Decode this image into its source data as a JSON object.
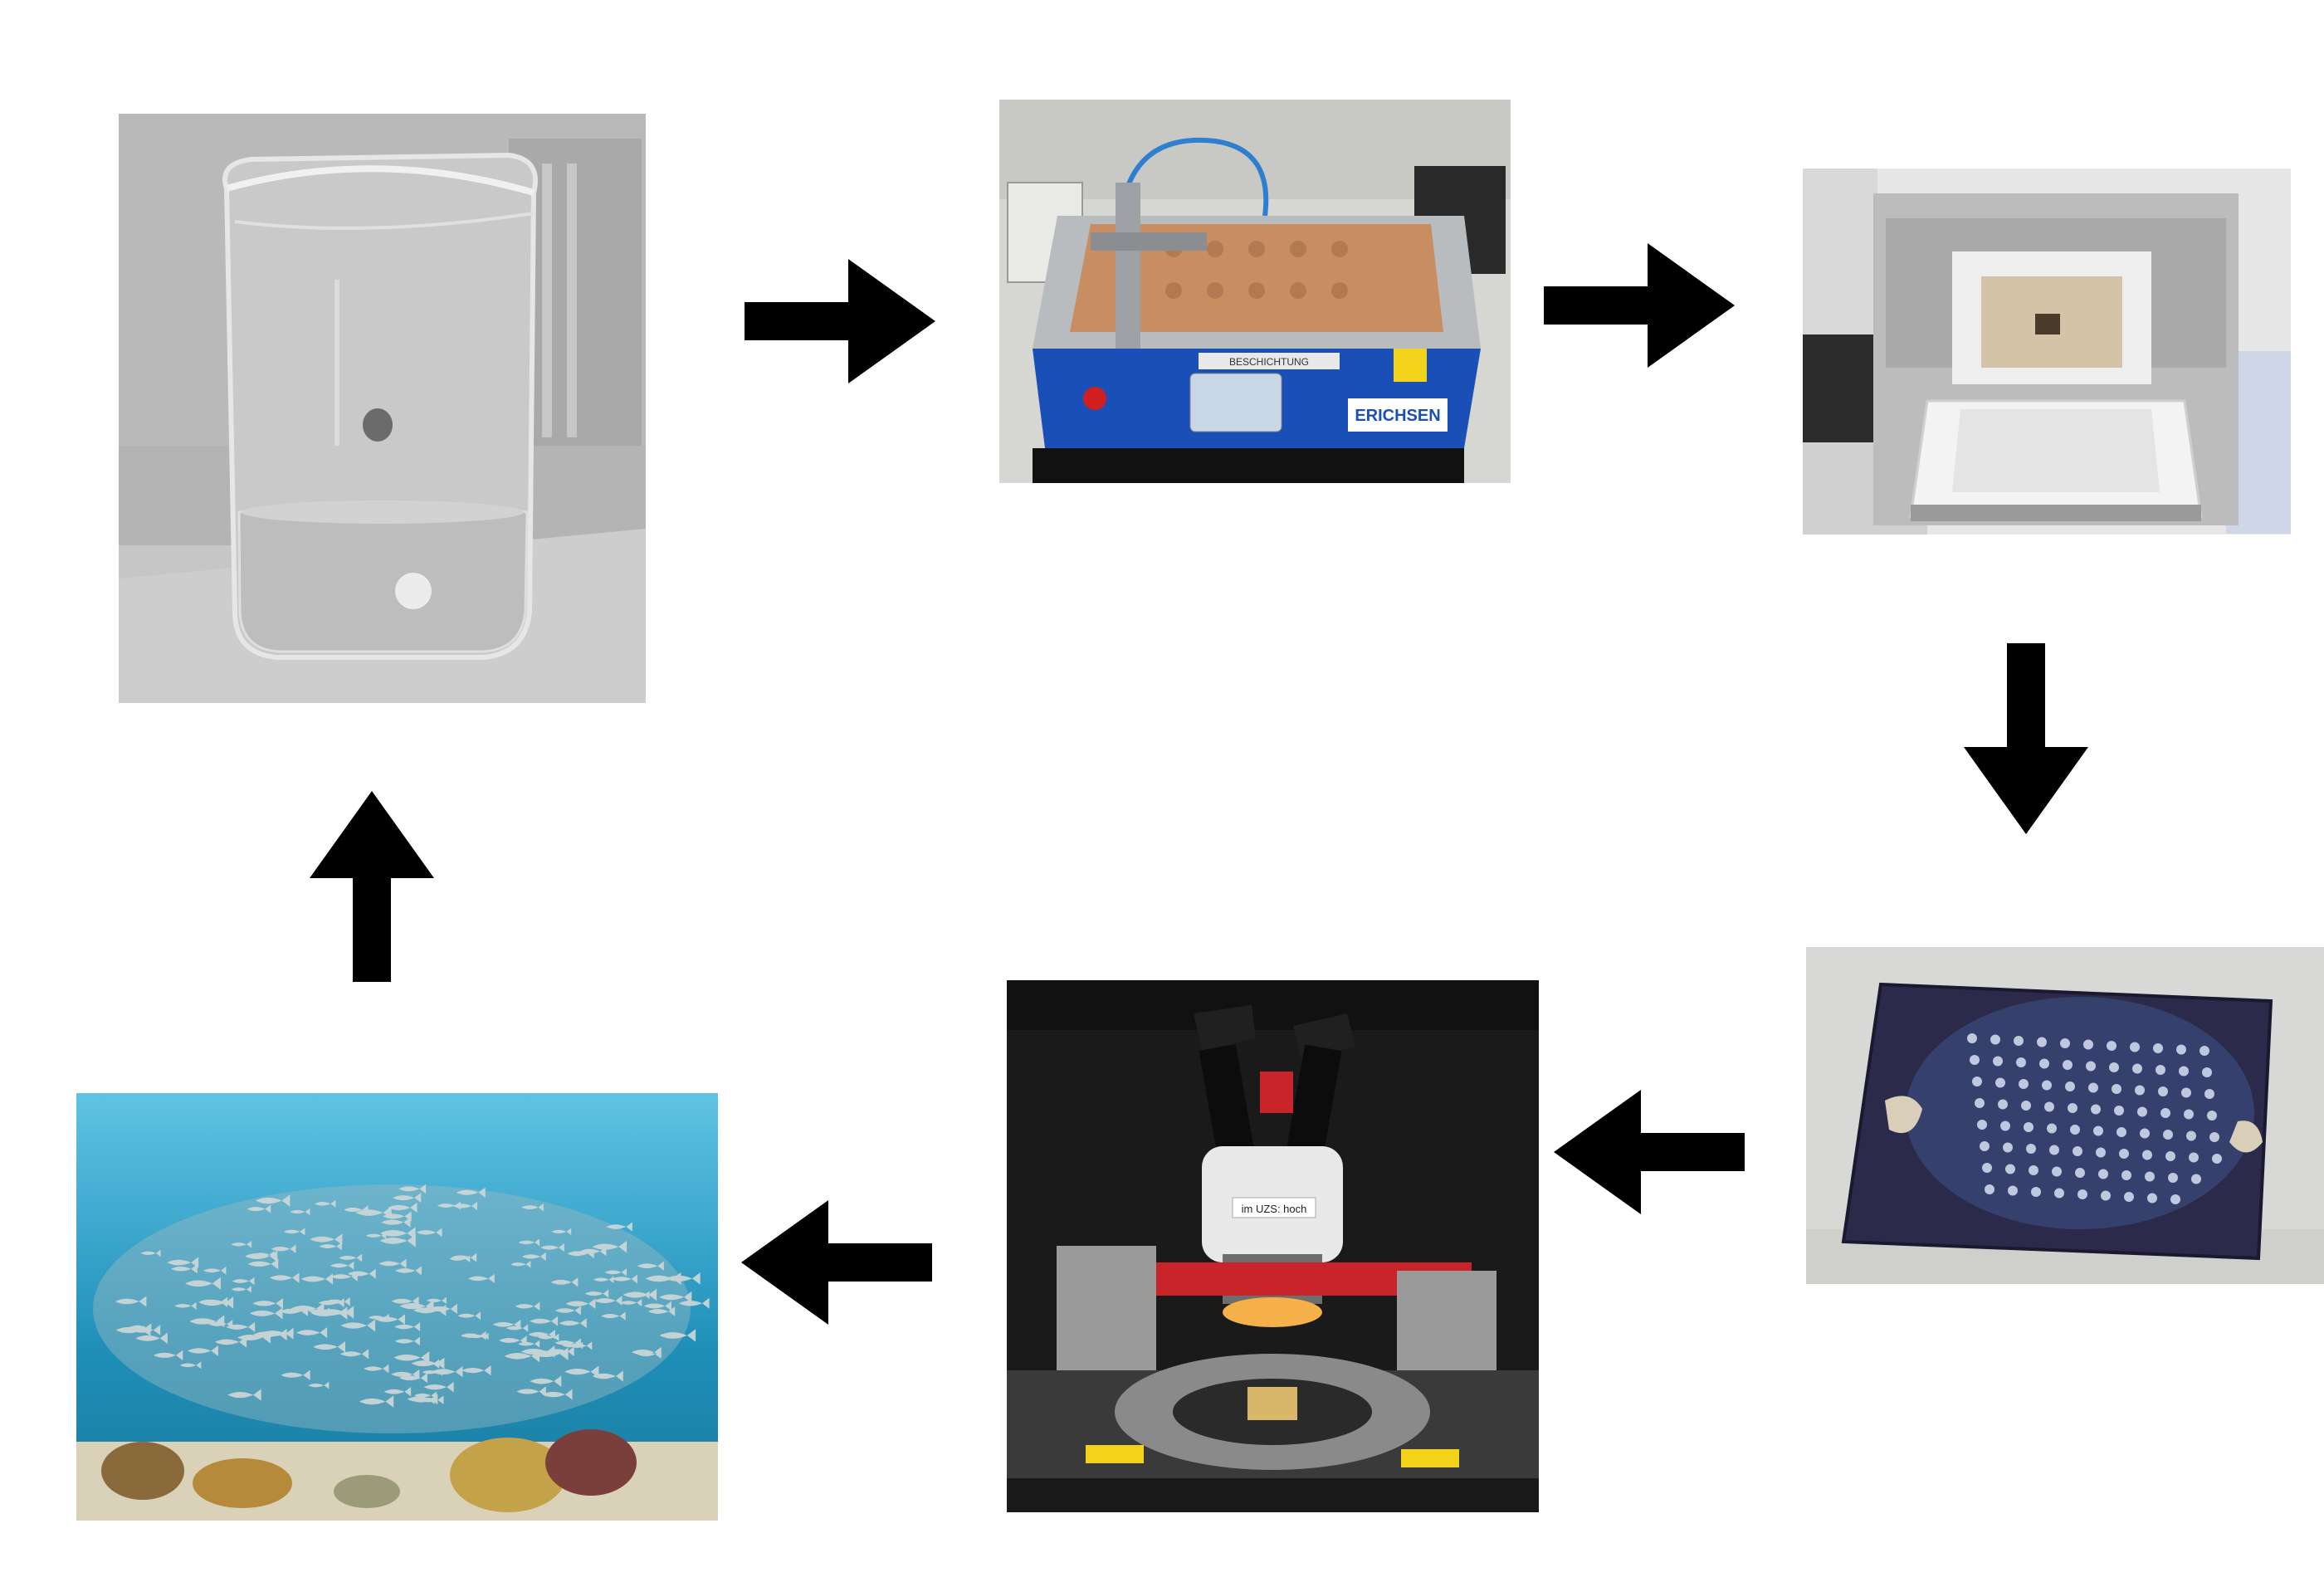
{
  "diagram": {
    "type": "process-cycle",
    "steps": [
      {
        "id": "beaker-solution",
        "image": "glass beaker with clear liquid solution"
      },
      {
        "id": "film-applicator",
        "image": "blue automatic film applicator coater",
        "device_brand": "ERICHSEN",
        "device_label": "BESCHICHTUNG"
      },
      {
        "id": "muffle-furnace",
        "image": "open laboratory muffle furnace"
      },
      {
        "id": "coated-substrate",
        "image": "coated substrate with array of round spots"
      },
      {
        "id": "probe-station-microscope",
        "image": "stereo microscope probe station",
        "microscope_label": "im UZS: hoch"
      },
      {
        "id": "fish-school",
        "image": "school of fish over coral reef"
      }
    ],
    "arrow_color": "#000000",
    "background": "#ffffff"
  }
}
